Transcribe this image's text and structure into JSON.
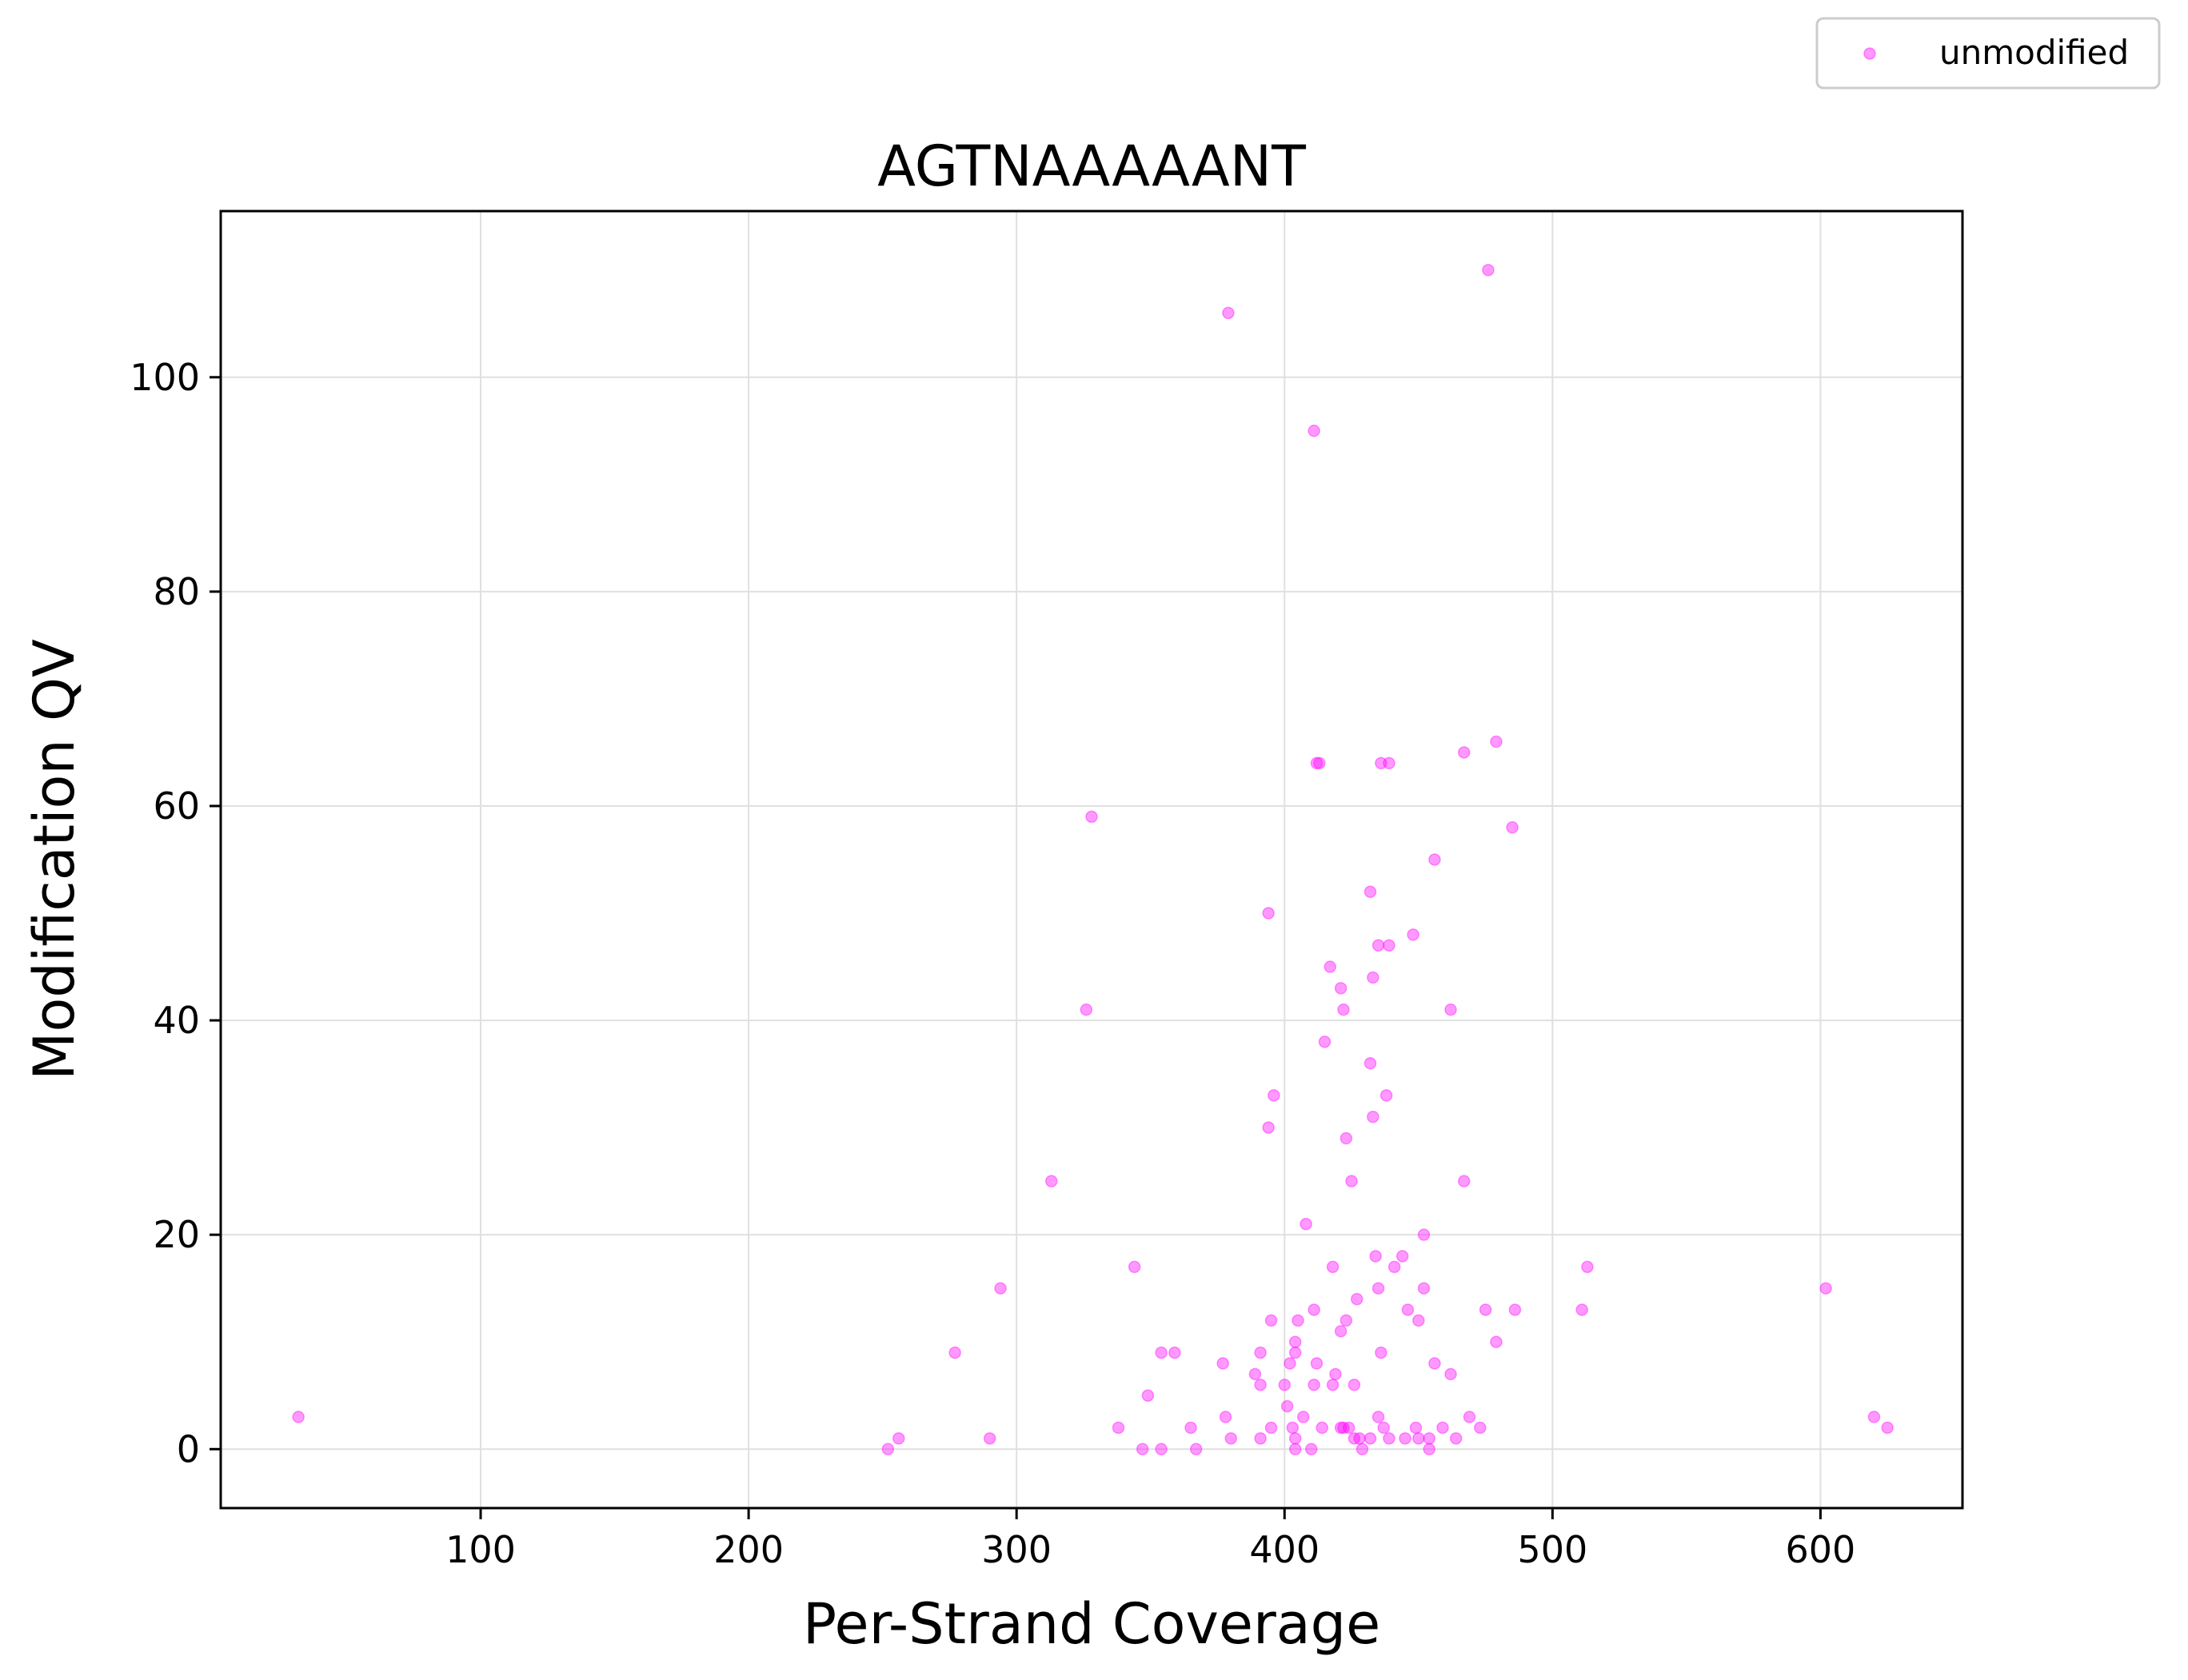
{
  "chart_data": {
    "type": "scatter",
    "title": "AGTNAAAAANT",
    "xlabel": "Per-Strand Coverage",
    "ylabel": "Modification QV",
    "xlim": [
      3,
      653
    ],
    "ylim": [
      -5.5,
      115.5
    ],
    "xticks": [
      100,
      200,
      300,
      400,
      500,
      600
    ],
    "yticks": [
      0,
      20,
      40,
      60,
      80,
      100
    ],
    "grid": true,
    "legend_position": "top-right",
    "series": [
      {
        "name": "unmodified",
        "color": "#ff00ff",
        "points": [
          [
            32,
            3
          ],
          [
            252,
            0
          ],
          [
            256,
            1
          ],
          [
            277,
            9
          ],
          [
            290,
            1
          ],
          [
            294,
            15
          ],
          [
            313,
            25
          ],
          [
            326,
            41
          ],
          [
            328,
            59
          ],
          [
            338,
            2
          ],
          [
            344,
            17
          ],
          [
            347,
            0
          ],
          [
            349,
            5
          ],
          [
            354,
            0
          ],
          [
            354,
            9
          ],
          [
            359,
            9
          ],
          [
            365,
            2
          ],
          [
            367,
            0
          ],
          [
            377,
            8
          ],
          [
            378,
            3
          ],
          [
            379,
            106
          ],
          [
            380,
            1
          ],
          [
            389,
            7
          ],
          [
            391,
            6
          ],
          [
            391,
            9
          ],
          [
            391,
            1
          ],
          [
            394,
            50
          ],
          [
            394,
            30
          ],
          [
            395,
            12
          ],
          [
            395,
            2
          ],
          [
            396,
            33
          ],
          [
            400,
            6
          ],
          [
            401,
            4
          ],
          [
            402,
            8
          ],
          [
            403,
            2
          ],
          [
            404,
            10
          ],
          [
            404,
            9
          ],
          [
            404,
            1
          ],
          [
            404,
            0
          ],
          [
            405,
            12
          ],
          [
            407,
            3
          ],
          [
            408,
            21
          ],
          [
            410,
            0
          ],
          [
            411,
            95
          ],
          [
            411,
            6
          ],
          [
            411,
            13
          ],
          [
            412,
            8
          ],
          [
            412,
            64
          ],
          [
            413,
            64
          ],
          [
            414,
            2
          ],
          [
            415,
            38
          ],
          [
            417,
            45
          ],
          [
            418,
            17
          ],
          [
            418,
            6
          ],
          [
            419,
            7
          ],
          [
            421,
            11
          ],
          [
            421,
            43
          ],
          [
            421,
            2
          ],
          [
            422,
            41
          ],
          [
            422,
            2
          ],
          [
            423,
            29
          ],
          [
            423,
            12
          ],
          [
            424,
            2
          ],
          [
            425,
            25
          ],
          [
            426,
            6
          ],
          [
            426,
            1
          ],
          [
            427,
            14
          ],
          [
            428,
            1
          ],
          [
            429,
            0
          ],
          [
            432,
            36
          ],
          [
            432,
            1
          ],
          [
            432,
            52
          ],
          [
            433,
            44
          ],
          [
            433,
            31
          ],
          [
            434,
            18
          ],
          [
            435,
            15
          ],
          [
            435,
            3
          ],
          [
            435,
            47
          ],
          [
            436,
            64
          ],
          [
            436,
            9
          ],
          [
            437,
            2
          ],
          [
            438,
            33
          ],
          [
            439,
            47
          ],
          [
            439,
            64
          ],
          [
            439,
            1
          ],
          [
            441,
            17
          ],
          [
            444,
            18
          ],
          [
            445,
            1
          ],
          [
            446,
            13
          ],
          [
            448,
            48
          ],
          [
            449,
            2
          ],
          [
            450,
            12
          ],
          [
            450,
            1
          ],
          [
            452,
            20
          ],
          [
            452,
            15
          ],
          [
            454,
            1
          ],
          [
            454,
            0
          ],
          [
            456,
            55
          ],
          [
            456,
            8
          ],
          [
            459,
            2
          ],
          [
            462,
            41
          ],
          [
            462,
            7
          ],
          [
            464,
            1
          ],
          [
            467,
            65
          ],
          [
            467,
            25
          ],
          [
            469,
            3
          ],
          [
            473,
            2
          ],
          [
            475,
            13
          ],
          [
            476,
            110
          ],
          [
            479,
            66
          ],
          [
            479,
            10
          ],
          [
            485,
            58
          ],
          [
            486,
            13
          ],
          [
            511,
            13
          ],
          [
            513,
            17
          ],
          [
            602,
            15
          ],
          [
            620,
            3
          ],
          [
            625,
            2
          ]
        ]
      }
    ]
  }
}
